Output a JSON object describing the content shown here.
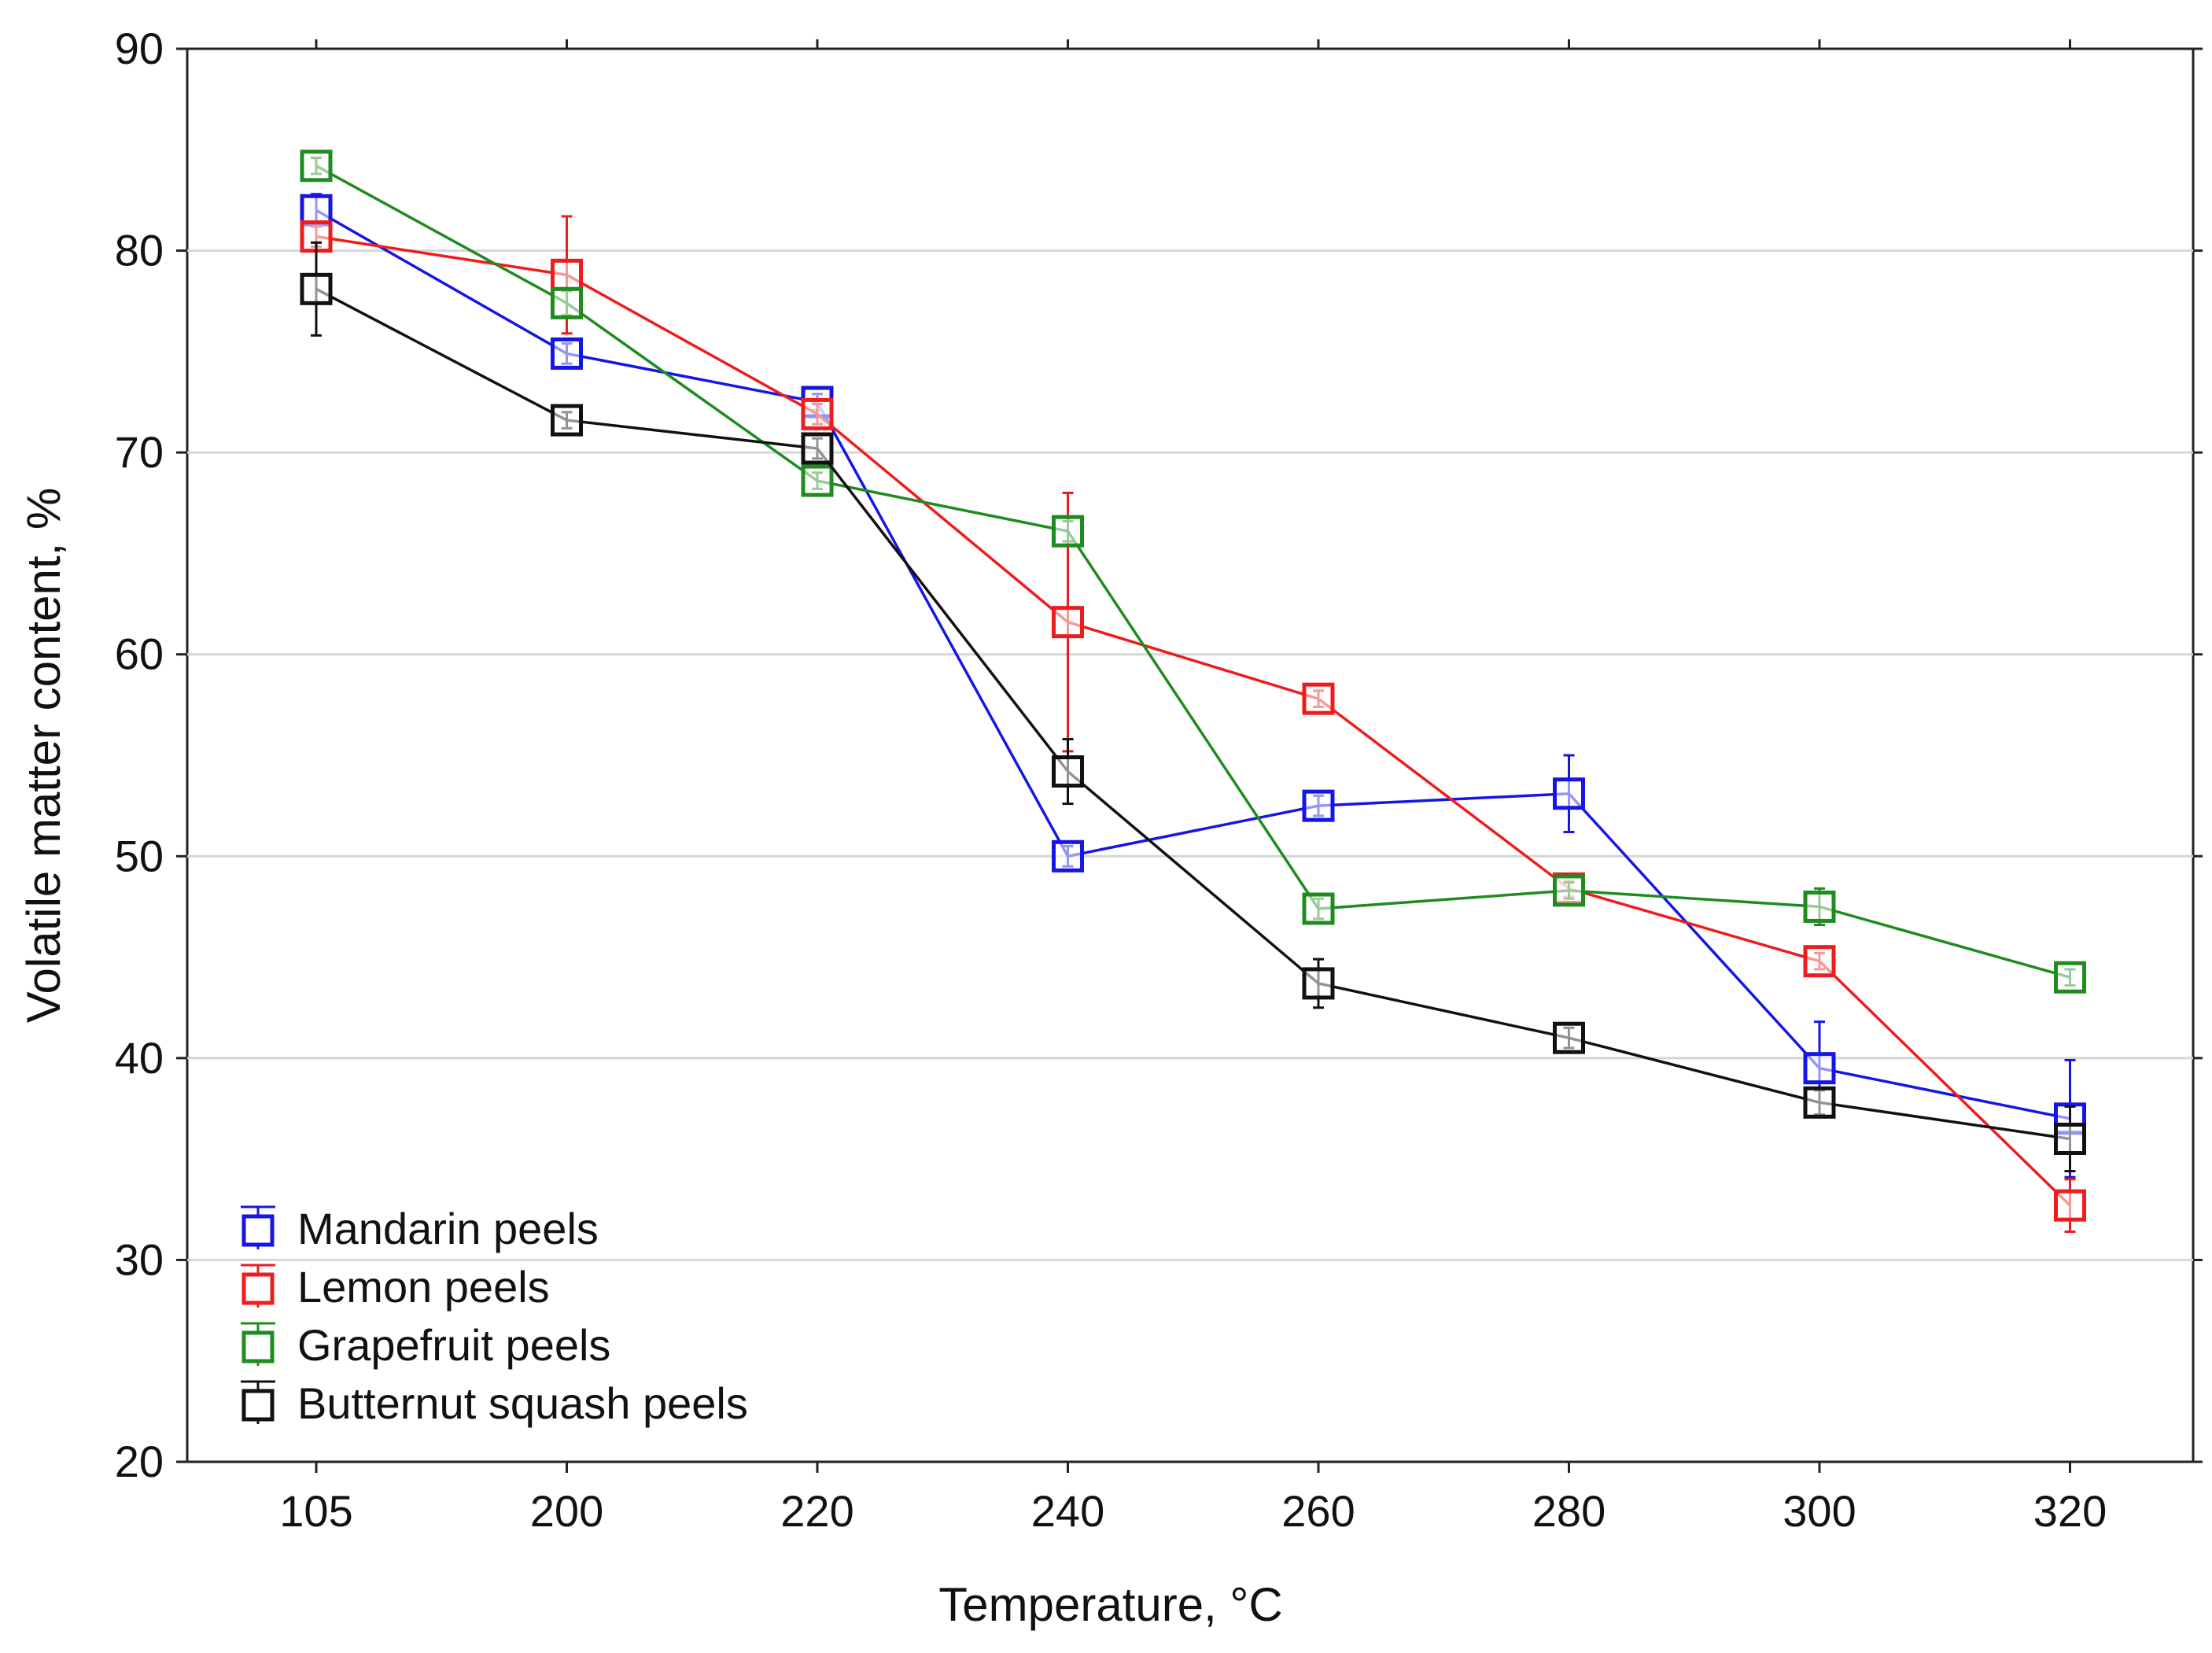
{
  "chart_data": {
    "type": "line",
    "title": "",
    "xlabel": "Temperature, °C",
    "ylabel": "Volatile matter content, %",
    "categories": [
      "105",
      "200",
      "220",
      "240",
      "260",
      "280",
      "300",
      "320"
    ],
    "ylim": [
      20,
      90
    ],
    "yticks": [
      20,
      30,
      40,
      50,
      60,
      70,
      80,
      90
    ],
    "grid": "horizontal",
    "legend_position": "bottom-left",
    "marker": "open-square",
    "series": [
      {
        "name": "Mandarin peels",
        "color": "#1515e8",
        "values": [
          82.0,
          74.9,
          72.5,
          50.0,
          52.5,
          53.1,
          39.5,
          37.0
        ],
        "error": [
          0.8,
          0.5,
          0.4,
          0.5,
          0.5,
          1.9,
          2.3,
          2.9
        ]
      },
      {
        "name": "Lemon peels",
        "color": "#ee1c1c",
        "values": [
          80.7,
          78.8,
          71.9,
          61.6,
          57.8,
          48.4,
          44.8,
          32.7
        ],
        "error": [
          0.5,
          2.9,
          0.5,
          6.4,
          0.4,
          0.4,
          0.4,
          1.3
        ]
      },
      {
        "name": "Grapefruit peels",
        "color": "#1e8c1e",
        "values": [
          84.2,
          77.4,
          68.6,
          66.1,
          47.4,
          48.3,
          47.5,
          44.0
        ],
        "error": [
          0.4,
          0.6,
          0.4,
          0.5,
          0.5,
          0.4,
          0.9,
          0.4
        ]
      },
      {
        "name": "Butternut squash peels",
        "color": "#111111",
        "values": [
          78.1,
          71.6,
          70.2,
          54.2,
          43.7,
          41.0,
          37.8,
          36.0
        ],
        "error": [
          2.3,
          0.4,
          0.5,
          1.6,
          1.2,
          0.5,
          0.6,
          1.6
        ]
      }
    ]
  }
}
